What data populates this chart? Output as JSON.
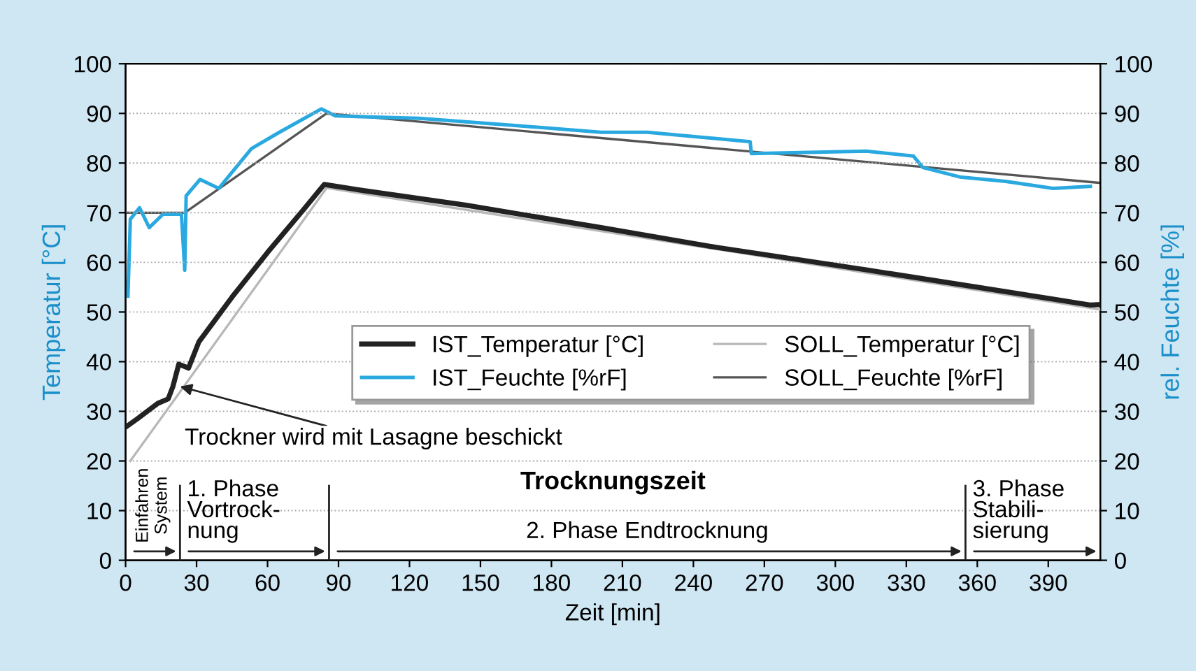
{
  "chart_data": {
    "type": "line",
    "xlabel": "Zeit [min]",
    "ylabel": "Temperatur [°C]",
    "y2label": "rel. Feuchte [%]",
    "xlim": [
      0,
      412
    ],
    "xticks": [
      0,
      30,
      60,
      90,
      120,
      150,
      180,
      210,
      240,
      270,
      300,
      330,
      360,
      390
    ],
    "ylim": [
      0,
      100
    ],
    "yticks": [
      0,
      10,
      20,
      30,
      40,
      50,
      60,
      70,
      80,
      90,
      100
    ],
    "y2lim": [
      0,
      100
    ],
    "y2ticks": [
      0,
      10,
      20,
      30,
      40,
      50,
      60,
      70,
      80,
      90,
      100
    ],
    "grid": "y",
    "legend": "bottom",
    "line_style": "solid",
    "marker": "none",
    "series": [
      {
        "name": "IST_Temperatur [°C]",
        "color": "#222222",
        "x": [
          0,
          5,
          13.6,
          18,
          20,
          22.5,
          26.6,
          31,
          45,
          60,
          75,
          84,
          100,
          144,
          201,
          250,
          313,
          360,
          408,
          412
        ],
        "values": [
          26.8,
          28.5,
          31.6,
          32.5,
          35,
          39.5,
          38.7,
          44,
          53,
          62,
          70.5,
          75.7,
          74.5,
          71.5,
          67,
          63,
          58.5,
          55,
          51.4,
          51.5
        ]
      },
      {
        "name": "SOLL_Temperatur [°C]",
        "color": "#b8b8b8",
        "x": [
          2,
          85,
          412
        ],
        "values": [
          20,
          75,
          50.5
        ]
      },
      {
        "name": "IST_Feuchte [%rF]",
        "color": "#29a9e0",
        "axis": "y2",
        "x": [
          1,
          2,
          5.9,
          10,
          15.8,
          23.6,
          25,
          25.6,
          31.5,
          39.4,
          53.2,
          65,
          82.7,
          88.7,
          124,
          163.5,
          201,
          220.6,
          264,
          264.5,
          313,
          333,
          337,
          352.6,
          372,
          392,
          407.8
        ],
        "values": [
          53.2,
          68.7,
          71,
          67,
          69.7,
          69.7,
          58.4,
          73.4,
          76.7,
          74.9,
          82.9,
          86.2,
          90.9,
          89.5,
          89,
          87.6,
          86.2,
          86.2,
          84.3,
          81.9,
          82.4,
          81.4,
          79.1,
          77.2,
          76.3,
          74.9,
          75.3
        ]
      },
      {
        "name": "SOLL_Feuchte [%rF]",
        "color": "#555555",
        "axis": "y2",
        "x": [
          0,
          25,
          85,
          412
        ],
        "values": [
          70,
          70,
          90,
          76
        ]
      }
    ],
    "ref_lines": [
      {
        "axis": "x",
        "value": 23,
        "color": "#222222"
      },
      {
        "axis": "x",
        "value": 86,
        "color": "#222222"
      },
      {
        "axis": "x",
        "value": 355,
        "color": "#222222"
      }
    ],
    "annotations": [
      "Einfahren\nSystem",
      "1. Phase\nVortrock-\nnung",
      "2. Phase Endtrocknung",
      "3. Phase\nStabili-\nsierung",
      "Trocknungszeit",
      {
        "text": "Trockner wird mit Lasagne beschickt",
        "x": 23,
        "y": 35
      }
    ]
  }
}
